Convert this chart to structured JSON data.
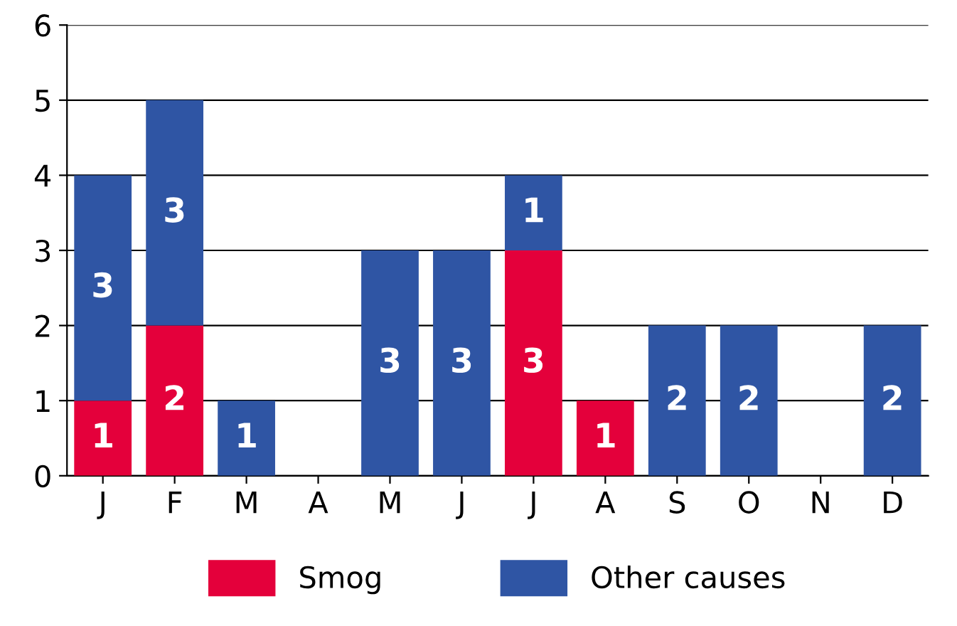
{
  "chart_data": {
    "type": "bar",
    "stacked": true,
    "categories": [
      "J",
      "F",
      "M",
      "A",
      "M",
      "J",
      "J",
      "A",
      "S",
      "O",
      "N",
      "D"
    ],
    "series": [
      {
        "name": "Smog",
        "color": "#e4003b",
        "values": [
          1,
          2,
          null,
          null,
          null,
          null,
          3,
          1,
          null,
          null,
          null,
          null
        ]
      },
      {
        "name": "Other causes",
        "color": "#2f55a4",
        "values": [
          3,
          3,
          1,
          null,
          3,
          3,
          1,
          null,
          2,
          2,
          null,
          2
        ]
      }
    ],
    "ylim": [
      0,
      6
    ],
    "yticks": [
      0,
      1,
      2,
      3,
      4,
      5,
      6
    ],
    "grid": "y",
    "legend": "bottom",
    "data_labels": true
  }
}
